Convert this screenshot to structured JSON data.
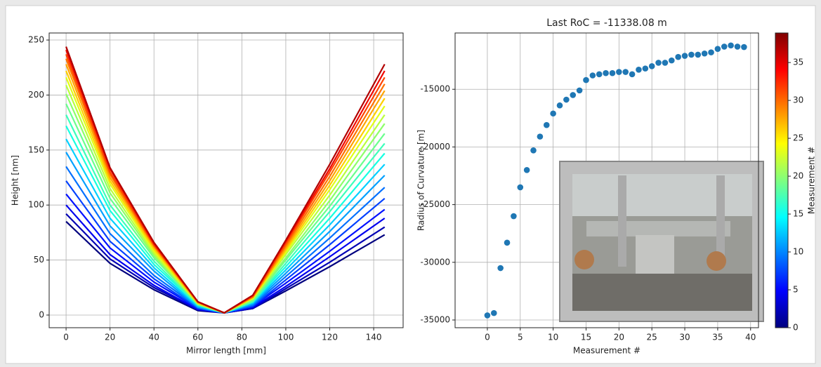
{
  "chart_data": [
    {
      "type": "line",
      "xlabel": "Mirror length [mm]",
      "ylabel": "Height [nm]",
      "x": [
        0,
        20,
        40,
        60,
        72,
        85,
        100,
        120,
        145
      ],
      "xlim": [
        -7.7,
        153.4
      ],
      "xticks": [
        0,
        20,
        40,
        60,
        80,
        100,
        120,
        140
      ],
      "ylim": [
        -11.5,
        256.4
      ],
      "yticks": [
        0,
        50,
        100,
        150,
        200,
        250
      ],
      "grid": true,
      "series": [
        {
          "color": "#00007f",
          "values": [
            85,
            47,
            23,
            4,
            2,
            6,
            22,
            44,
            73
          ]
        },
        {
          "color": "#0000b5",
          "values": [
            92,
            51,
            25,
            5,
            2,
            6,
            24,
            48,
            80
          ]
        },
        {
          "color": "#0000ef",
          "values": [
            100,
            55,
            27,
            5,
            2,
            7,
            26,
            53,
            88
          ]
        },
        {
          "color": "#0010ff",
          "values": [
            110,
            61,
            30,
            6,
            2,
            8,
            29,
            58,
            96
          ]
        },
        {
          "color": "#0040ff",
          "values": [
            122,
            67,
            33,
            6,
            2,
            8,
            32,
            64,
            106
          ]
        },
        {
          "color": "#0070ff",
          "values": [
            135,
            74,
            36,
            7,
            2,
            9,
            35,
            70,
            116
          ]
        },
        {
          "color": "#00a0ff",
          "values": [
            148,
            81,
            40,
            7,
            2,
            10,
            38,
            76,
            127
          ]
        },
        {
          "color": "#00d0ff",
          "values": [
            160,
            88,
            43,
            8,
            2,
            11,
            41,
            82,
            137
          ]
        },
        {
          "color": "#16ffe1",
          "values": [
            172,
            95,
            46,
            9,
            2,
            12,
            44,
            88,
            147
          ]
        },
        {
          "color": "#3dffba",
          "values": [
            182,
            100,
            49,
            9,
            2,
            12,
            47,
            94,
            156
          ]
        },
        {
          "color": "#6aff8d",
          "values": [
            192,
            106,
            52,
            10,
            2,
            13,
            50,
            99,
            165
          ]
        },
        {
          "color": "#8dff6a",
          "values": [
            201,
            111,
            54,
            10,
            2,
            14,
            52,
            104,
            174
          ]
        },
        {
          "color": "#baff3d",
          "values": [
            209,
            115,
            56,
            10,
            2,
            15,
            55,
            109,
            182
          ]
        },
        {
          "color": "#e1ff16",
          "values": [
            216,
            119,
            58,
            11,
            2,
            15,
            57,
            114,
            190
          ]
        },
        {
          "color": "#ffd000",
          "values": [
            222,
            122,
            60,
            11,
            2,
            16,
            59,
            118,
            197
          ]
        },
        {
          "color": "#ffa400",
          "values": [
            228,
            125,
            62,
            11,
            2,
            16,
            61,
            122,
            204
          ]
        },
        {
          "color": "#ff7100",
          "values": [
            233,
            128,
            63,
            12,
            2,
            17,
            63,
            126,
            210
          ]
        },
        {
          "color": "#ff4300",
          "values": [
            237,
            130,
            64,
            12,
            2,
            17,
            65,
            130,
            216
          ]
        },
        {
          "color": "#f10800",
          "values": [
            241,
            133,
            65,
            12,
            2,
            18,
            67,
            133,
            222
          ]
        },
        {
          "color": "#b20000",
          "values": [
            244,
            134,
            66,
            12,
            2,
            18,
            68,
            137,
            228
          ]
        }
      ]
    },
    {
      "type": "scatter",
      "title": "Last RoC = -11338.08 m",
      "xlabel": "Measurement #",
      "ylabel": "Radius of Curvature [m]",
      "color": "#1f77b4",
      "grid": true,
      "x": [
        0,
        1,
        2,
        3,
        4,
        5,
        6,
        7,
        8,
        9,
        10,
        11,
        12,
        13,
        14,
        15,
        16,
        17,
        18,
        19,
        20,
        21,
        22,
        23,
        24,
        25,
        26,
        27,
        28,
        29,
        30,
        31,
        32,
        33,
        34,
        35,
        36,
        37,
        38,
        39
      ],
      "values": [
        -34600,
        -34400,
        -30500,
        -28300,
        -26000,
        -23500,
        -22000,
        -20300,
        -19100,
        -18100,
        -17100,
        -16400,
        -15900,
        -15500,
        -15100,
        -14200,
        -13800,
        -13700,
        -13600,
        -13600,
        -13500,
        -13500,
        -13700,
        -13300,
        -13200,
        -13000,
        -12700,
        -12700,
        -12500,
        -12200,
        -12100,
        -12000,
        -12000,
        -11900,
        -11800,
        -11500,
        -11300,
        -11200,
        -11300,
        -11338.08
      ],
      "xlim": [
        -4.9,
        41.2
      ],
      "xticks": [
        0,
        5,
        10,
        15,
        20,
        25,
        30,
        35,
        40
      ],
      "ylim": [
        -35670,
        -10120
      ],
      "yticks": [
        -35000,
        -30000,
        -25000,
        -20000,
        -15000
      ],
      "colorbar": {
        "label": "Measurement #",
        "lim": [
          0,
          38.9
        ],
        "ticks": [
          0,
          5,
          10,
          15,
          20,
          25,
          30,
          35
        ],
        "colormap": [
          "#00007f",
          "#0000ff",
          "#007fff",
          "#00ffff",
          "#7fff7f",
          "#ffff00",
          "#ff7f00",
          "#ff0000",
          "#7f0000"
        ]
      }
    }
  ]
}
